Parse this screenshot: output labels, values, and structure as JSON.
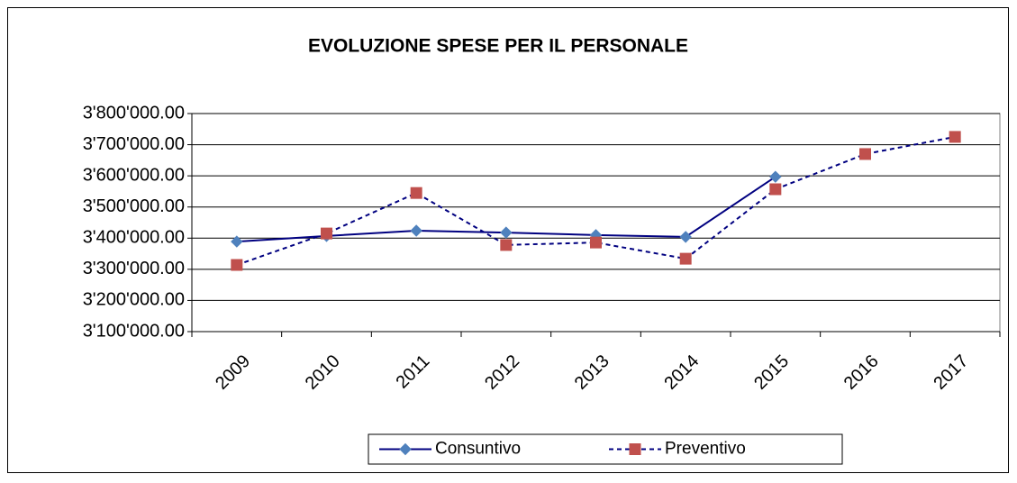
{
  "chart_data": {
    "type": "line",
    "title": "EVOLUZIONE SPESE PER IL PERSONALE",
    "categories": [
      "2009",
      "2010",
      "2011",
      "2012",
      "2013",
      "2014",
      "2015",
      "2016",
      "2017"
    ],
    "series": [
      {
        "name": "Consuntivo",
        "color": "#000080",
        "marker_color": "#4f81bd",
        "marker": "diamond",
        "dash": false,
        "values": [
          3389000,
          3407000,
          3424000,
          3418000,
          3410000,
          3404000,
          3597000,
          null,
          null
        ]
      },
      {
        "name": "Preventivo",
        "color": "#000080",
        "marker_color": "#c0504d",
        "marker": "square",
        "dash": true,
        "values": [
          3314000,
          3415000,
          3545000,
          3378000,
          3386000,
          3334000,
          3557000,
          3670000,
          3725000
        ]
      }
    ],
    "ylim": [
      3100000,
      3800000
    ],
    "yticks": [
      {
        "value": 3100000,
        "label": "3'100'000.00"
      },
      {
        "value": 3200000,
        "label": "3'200'000.00"
      },
      {
        "value": 3300000,
        "label": "3'300'000.00"
      },
      {
        "value": 3400000,
        "label": "3'400'000.00"
      },
      {
        "value": 3500000,
        "label": "3'500'000.00"
      },
      {
        "value": 3600000,
        "label": "3'600'000.00"
      },
      {
        "value": 3700000,
        "label": "3'700'000.00"
      },
      {
        "value": 3800000,
        "label": "3'800'000.00"
      }
    ],
    "grid": true,
    "legend": "bottom"
  }
}
